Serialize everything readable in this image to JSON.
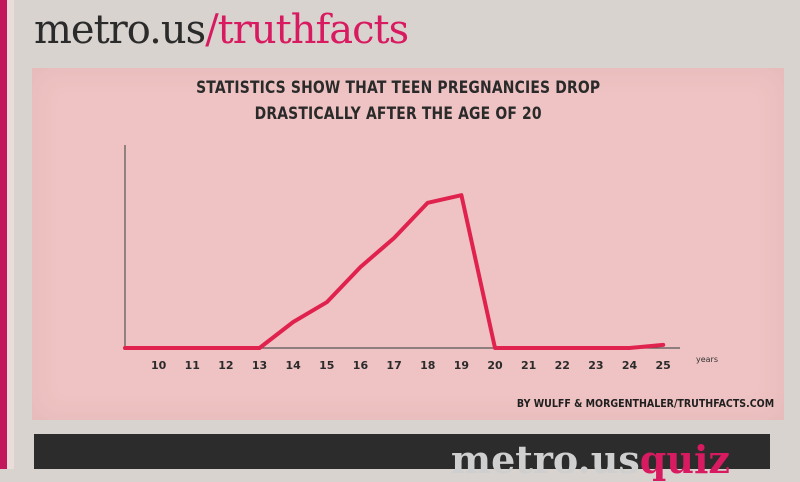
{
  "masthead": {
    "site": "metro.us",
    "slash": "/",
    "section": "truthfacts"
  },
  "credit": "BY WULFF & MORGENTHALER/TRUTHFACTS.COM",
  "bottom_strip": {
    "site": "metro.us",
    "section": "quiz"
  },
  "colors": {
    "panel": "#efc3c3",
    "line": "#e0234e",
    "axis": "#555555",
    "brand_pink": "#d81b60"
  },
  "chart_data": {
    "type": "line",
    "title_lines": [
      "STATISTICS SHOW THAT TEEN PREGNANCIES DROP",
      "DRASTICALLY AFTER THE AGE OF 20"
    ],
    "xlabel": "years",
    "ylabel": "",
    "x_ticks": [
      10,
      11,
      12,
      13,
      14,
      15,
      16,
      17,
      18,
      19,
      20,
      21,
      22,
      23,
      24,
      25
    ],
    "x": [
      9,
      10,
      11,
      12,
      13,
      14,
      15,
      16,
      17,
      18,
      19,
      20,
      21,
      22,
      23,
      24,
      25
    ],
    "series": [
      {
        "values": [
          0,
          0,
          0,
          0,
          0,
          0.17,
          0.3,
          0.53,
          0.72,
          0.95,
          1.0,
          0,
          0,
          0,
          0,
          0,
          0.02
        ]
      }
    ],
    "xlim": [
      9,
      25.5
    ],
    "ylim": [
      0,
      1.06
    ],
    "grid": false,
    "legend": "none"
  }
}
